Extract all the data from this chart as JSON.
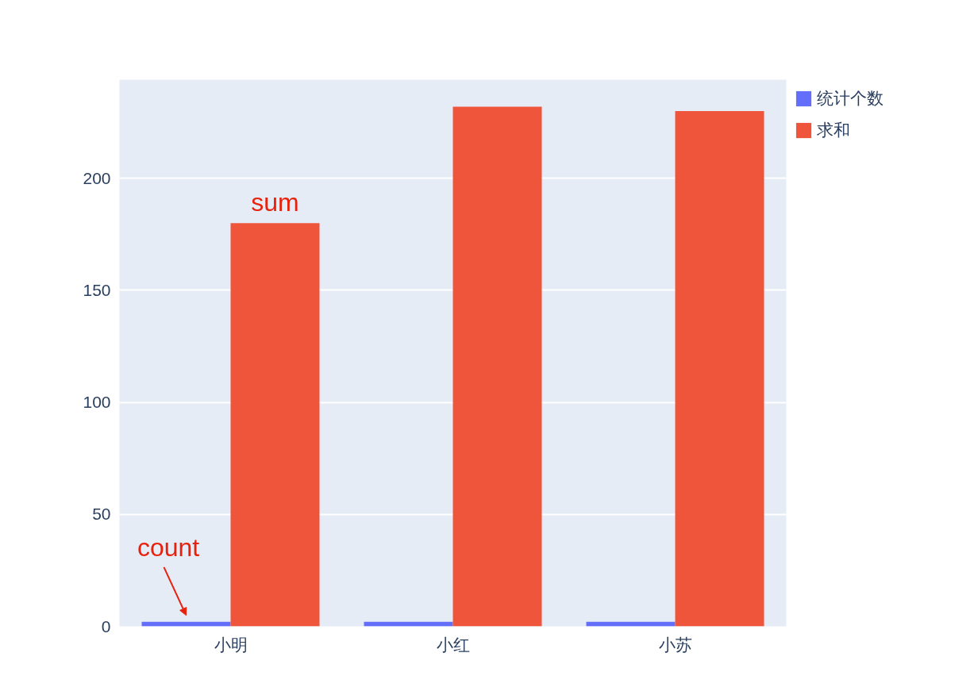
{
  "chart_data": {
    "type": "bar",
    "categories": [
      "小明",
      "小红",
      "小苏"
    ],
    "series": [
      {
        "name": "统计个数",
        "color": "#636efa",
        "values": [
          2,
          2,
          2
        ]
      },
      {
        "name": "求和",
        "color": "#ef553b",
        "values": [
          180,
          232,
          230
        ]
      }
    ],
    "ylim": [
      0,
      244
    ],
    "yticks": [
      0,
      50,
      100,
      150,
      200
    ],
    "grid": "y",
    "legend": "top right",
    "annotations": [
      {
        "text": "count",
        "x": "小明",
        "y": 2
      },
      {
        "text": "sum",
        "x": "小明",
        "y": 180
      }
    ]
  }
}
